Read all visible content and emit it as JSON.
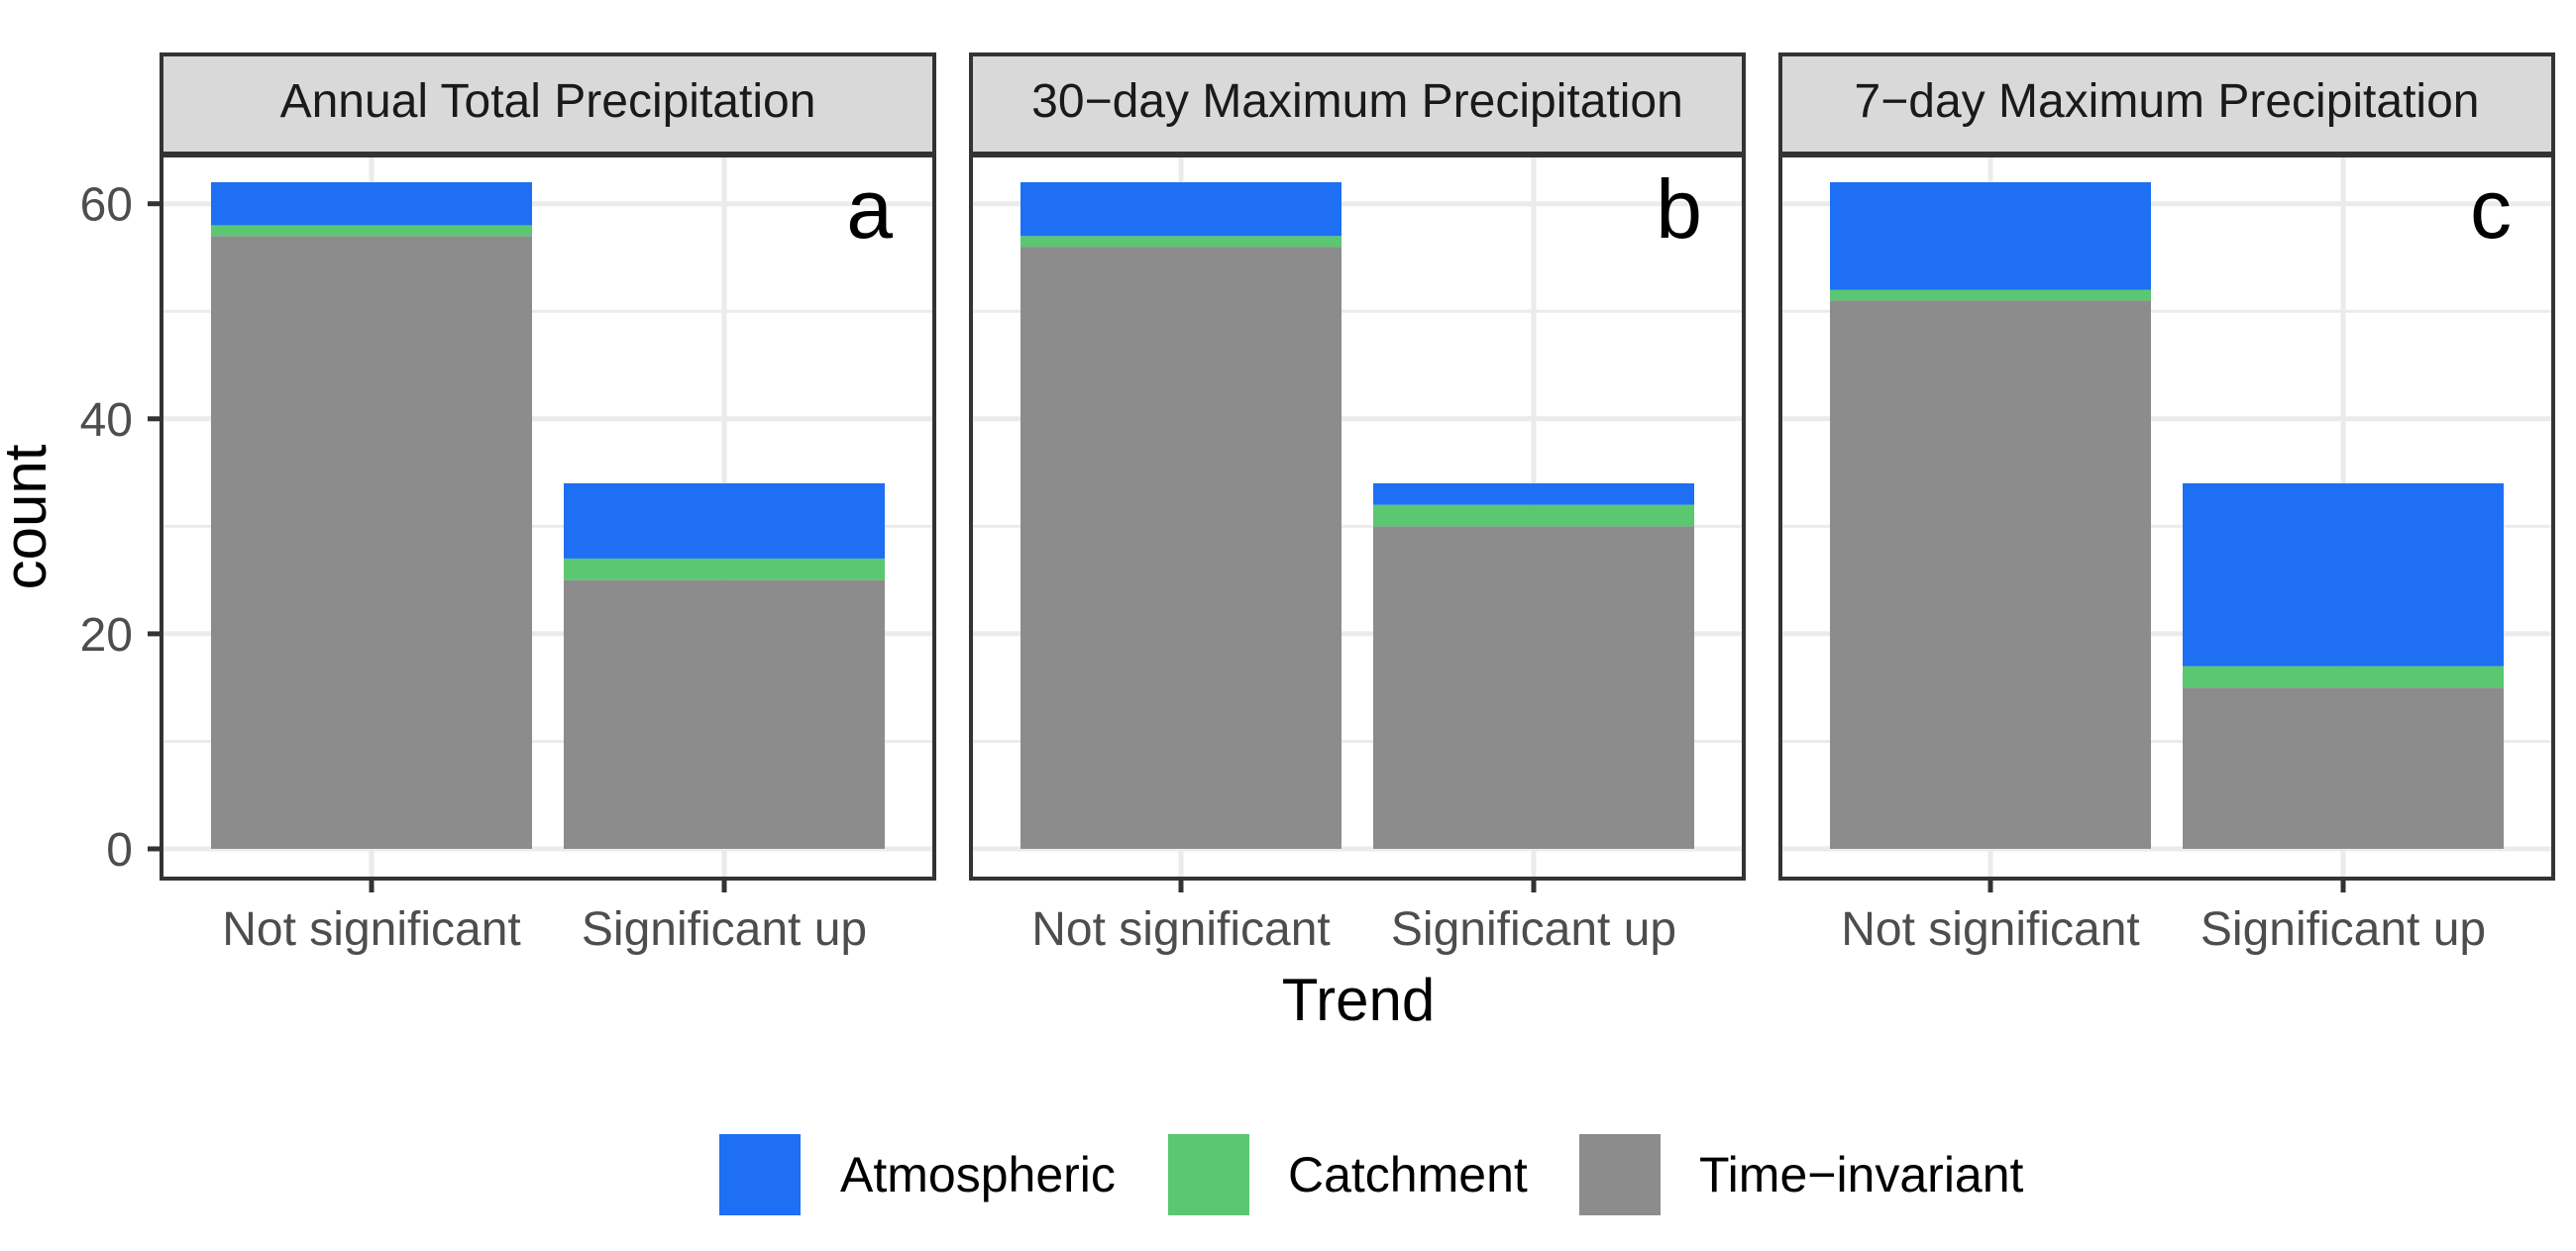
{
  "chart_data": {
    "type": "bar",
    "stacked": true,
    "xlabel": "Trend",
    "ylabel": "count",
    "ylim": [
      0,
      62
    ],
    "yticks": [
      0,
      20,
      40,
      60
    ],
    "grid": true,
    "legend_position": "bottom",
    "categories": [
      "Not significant",
      "Significant up"
    ],
    "series_names": [
      "Atmospheric",
      "Catchment",
      "Time−invariant"
    ],
    "colors": {
      "Atmospheric": "#1E6FF3",
      "Catchment": "#5BC771",
      "Time−invariant": "#8C8C8C",
      "strip_background": "#D9D9D9",
      "panel_border": "#333333",
      "grid": "#EBEBEB",
      "tick_label": "#4D4D4D"
    },
    "panels": [
      {
        "title": "Annual Total Precipitation",
        "tag": "a",
        "series": [
          {
            "name": "Time−invariant",
            "values": [
              57,
              25
            ]
          },
          {
            "name": "Catchment",
            "values": [
              1,
              2
            ]
          },
          {
            "name": "Atmospheric",
            "values": [
              4,
              7
            ]
          }
        ]
      },
      {
        "title": "30−day Maximum Precipitation",
        "tag": "b",
        "series": [
          {
            "name": "Time−invariant",
            "values": [
              56,
              30
            ]
          },
          {
            "name": "Catchment",
            "values": [
              1,
              2
            ]
          },
          {
            "name": "Atmospheric",
            "values": [
              5,
              2
            ]
          }
        ]
      },
      {
        "title": "7−day Maximum Precipitation",
        "tag": "c",
        "series": [
          {
            "name": "Time−invariant",
            "values": [
              51,
              15
            ]
          },
          {
            "name": "Catchment",
            "values": [
              1,
              2
            ]
          },
          {
            "name": "Atmospheric",
            "values": [
              10,
              17
            ]
          }
        ]
      }
    ]
  }
}
